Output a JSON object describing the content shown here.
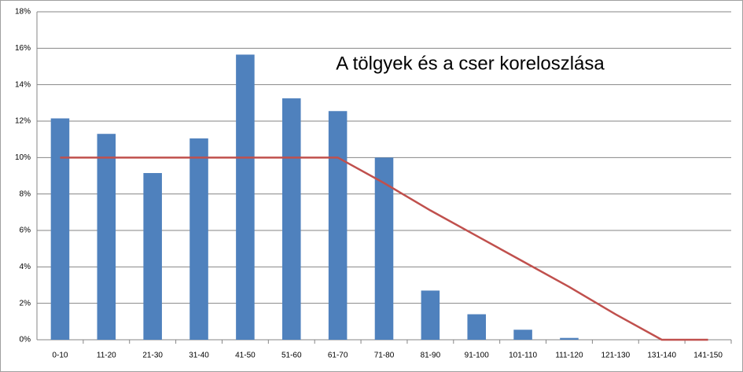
{
  "chart_data": {
    "type": "bar",
    "title": "A tölgyek és a cser koreloszlása",
    "categories": [
      "0-10",
      "11-20",
      "21-30",
      "31-40",
      "41-50",
      "51-60",
      "61-70",
      "71-80",
      "81-90",
      "91-100",
      "101-110",
      "111-120",
      "121-130",
      "131-140",
      "141-150"
    ],
    "series": [
      {
        "type": "bar",
        "color": "#4f81bd",
        "values": [
          12.15,
          11.3,
          9.15,
          11.05,
          15.65,
          13.25,
          12.55,
          10.0,
          2.7,
          1.4,
          0.55,
          0.1,
          0,
          0,
          0
        ]
      },
      {
        "type": "line",
        "color": "#c0504d",
        "values": [
          10,
          10,
          10,
          10,
          10,
          10,
          10,
          8.6,
          7.1,
          5.7,
          4.3,
          2.9,
          1.4,
          0,
          0
        ]
      }
    ],
    "ylim": [
      0,
      18
    ],
    "yticks": [
      {
        "value": 0,
        "label": "0%"
      },
      {
        "value": 2,
        "label": "2%"
      },
      {
        "value": 4,
        "label": "4%"
      },
      {
        "value": 6,
        "label": "6%"
      },
      {
        "value": 8,
        "label": "8%"
      },
      {
        "value": 10,
        "label": "10%"
      },
      {
        "value": 12,
        "label": "12%"
      },
      {
        "value": 14,
        "label": "14%"
      },
      {
        "value": 16,
        "label": "16%"
      },
      {
        "value": 18,
        "label": "18%"
      }
    ],
    "grid": true
  }
}
